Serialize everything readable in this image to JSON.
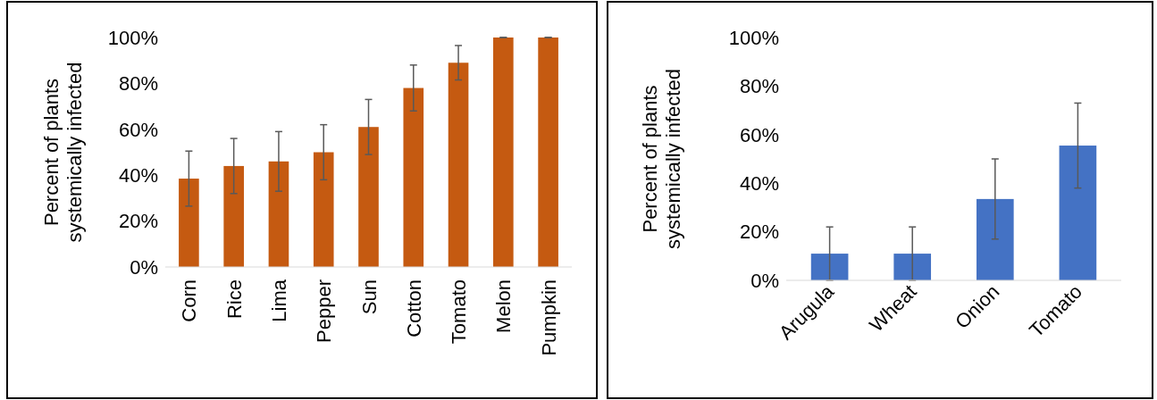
{
  "chart_data": [
    {
      "type": "bar",
      "ylabel": "Percent of plants\nsystemically infected",
      "categories": [
        "Corn",
        "Rice",
        "Lima",
        "Pepper",
        "Sun",
        "Cotton",
        "Tomato",
        "Melon",
        "Pumpkin"
      ],
      "series": [
        {
          "color": "#c55a11",
          "values": [
            38.5,
            44,
            46,
            50,
            61,
            78,
            89,
            100,
            100
          ],
          "errors": [
            12,
            12,
            13,
            12,
            12,
            10,
            7.5,
            0,
            0
          ]
        }
      ],
      "ylim": [
        0,
        100
      ],
      "yticks": [
        {
          "value": 0,
          "label": "0%"
        },
        {
          "value": 20,
          "label": "20%"
        },
        {
          "value": 40,
          "label": "40%"
        },
        {
          "value": 60,
          "label": "60%"
        },
        {
          "value": 80,
          "label": "80%"
        },
        {
          "value": 100,
          "label": "100%"
        }
      ]
    },
    {
      "type": "bar",
      "ylabel": "Percent of plants\nsystemically infected",
      "categories": [
        "Arugula",
        "Wheat",
        "Onion",
        "Tomato"
      ],
      "series": [
        {
          "color": "#4472c4",
          "values": [
            11,
            11,
            33.5,
            55.5
          ],
          "errors": [
            11,
            11,
            16.5,
            17.5
          ]
        }
      ],
      "ylim": [
        0,
        100
      ],
      "yticks": [
        {
          "value": 0,
          "label": "0%"
        },
        {
          "value": 20,
          "label": "20%"
        },
        {
          "value": 40,
          "label": "40%"
        },
        {
          "value": 60,
          "label": "60%"
        },
        {
          "value": 80,
          "label": "80%"
        },
        {
          "value": 100,
          "label": "100%"
        }
      ]
    }
  ]
}
